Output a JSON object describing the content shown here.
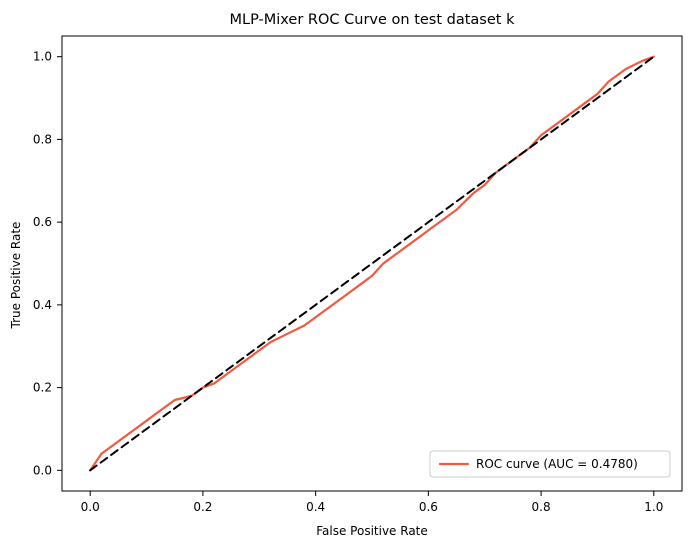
{
  "chart_data": {
    "type": "line",
    "title": "MLP-Mixer ROC Curve on test dataset k",
    "xlabel": "False Positive Rate",
    "ylabel": "True Positive Rate",
    "xlim": [
      -0.05,
      1.05
    ],
    "ylim": [
      -0.05,
      1.05
    ],
    "x_ticks": [
      {
        "value": 0.0,
        "label": "0.0"
      },
      {
        "value": 0.2,
        "label": "0.2"
      },
      {
        "value": 0.4,
        "label": "0.4"
      },
      {
        "value": 0.6,
        "label": "0.6"
      },
      {
        "value": 0.8,
        "label": "0.8"
      },
      {
        "value": 1.0,
        "label": "1.0"
      }
    ],
    "y_ticks": [
      {
        "value": 0.0,
        "label": "0.0"
      },
      {
        "value": 0.2,
        "label": "0.2"
      },
      {
        "value": 0.4,
        "label": "0.4"
      },
      {
        "value": 0.6,
        "label": "0.6"
      },
      {
        "value": 0.8,
        "label": "0.8"
      },
      {
        "value": 1.0,
        "label": "1.0"
      }
    ],
    "grid": false,
    "legend_position": "lower-right",
    "series": [
      {
        "name": "ROC curve (AUC = 0.4780)",
        "color": "#f05a40",
        "style": "solid",
        "x": [
          0.0,
          0.02,
          0.05,
          0.08,
          0.1,
          0.12,
          0.15,
          0.18,
          0.2,
          0.22,
          0.25,
          0.28,
          0.3,
          0.32,
          0.35,
          0.38,
          0.4,
          0.42,
          0.45,
          0.48,
          0.5,
          0.52,
          0.55,
          0.58,
          0.6,
          0.62,
          0.65,
          0.68,
          0.7,
          0.72,
          0.75,
          0.78,
          0.8,
          0.82,
          0.85,
          0.88,
          0.9,
          0.92,
          0.95,
          0.98,
          1.0
        ],
        "y": [
          0.0,
          0.04,
          0.07,
          0.1,
          0.12,
          0.14,
          0.17,
          0.18,
          0.2,
          0.21,
          0.24,
          0.27,
          0.29,
          0.31,
          0.33,
          0.35,
          0.37,
          0.39,
          0.42,
          0.45,
          0.47,
          0.5,
          0.53,
          0.56,
          0.58,
          0.6,
          0.63,
          0.67,
          0.69,
          0.72,
          0.75,
          0.78,
          0.81,
          0.83,
          0.86,
          0.89,
          0.91,
          0.94,
          0.97,
          0.99,
          1.0
        ]
      },
      {
        "name": "",
        "color": "#000000",
        "style": "dashed",
        "x": [
          0.0,
          1.0
        ],
        "y": [
          0.0,
          1.0
        ]
      }
    ]
  }
}
